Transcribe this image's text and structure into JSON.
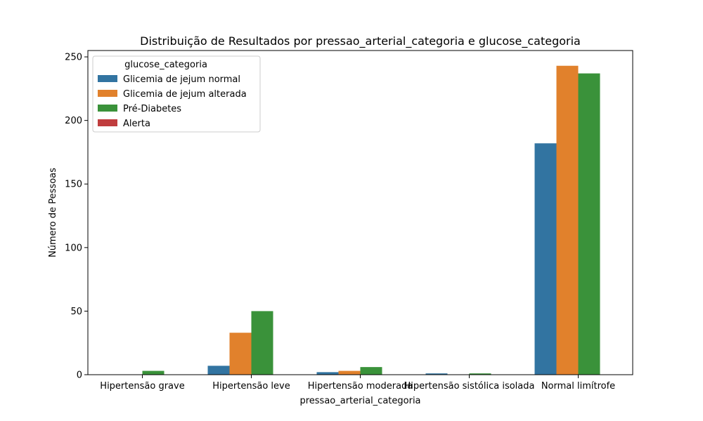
{
  "chart_data": {
    "type": "bar",
    "title": "Distribuição de Resultados por pressao_arterial_categoria e glucose_categoria",
    "xlabel": "pressao_arterial_categoria",
    "ylabel": "Número de Pessoas",
    "ylim": [
      0,
      255
    ],
    "yticks": [
      0,
      50,
      100,
      150,
      200,
      250
    ],
    "categories": [
      "Hipertensão grave",
      "Hipertensão leve",
      "Hipertensão moderada",
      "Hipertensão sistólica isolada",
      "Normal limítrofe"
    ],
    "legend_title": "glucose_categoria",
    "legend_position": "top-left",
    "series": [
      {
        "name": "Glicemia de jejum normal",
        "color": "#3274a1",
        "values": [
          0,
          7,
          2,
          1,
          182
        ]
      },
      {
        "name": "Glicemia de jejum alterada",
        "color": "#e1812c",
        "values": [
          0,
          33,
          3,
          0,
          243
        ]
      },
      {
        "name": "Pré-Diabetes",
        "color": "#3a923a",
        "values": [
          3,
          50,
          6,
          1,
          237
        ]
      },
      {
        "name": "Alerta",
        "color": "#c03d3e",
        "values": [
          0,
          0,
          0,
          0,
          0
        ]
      }
    ]
  }
}
